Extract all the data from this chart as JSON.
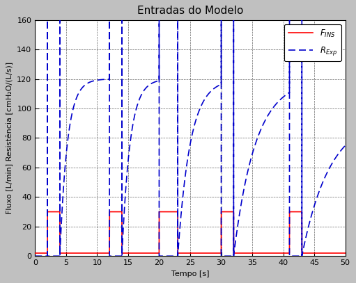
{
  "title": "Entradas do Modelo",
  "xlabel": "Tempo [s]",
  "ylabel": "Fluxo [L/min] Resistência [cmH₂O/(L/s)]",
  "xlim": [
    0,
    50
  ],
  "ylim": [
    0,
    160
  ],
  "xticks": [
    0,
    5,
    10,
    15,
    20,
    25,
    30,
    35,
    40,
    45,
    50
  ],
  "yticks": [
    0,
    20,
    40,
    60,
    80,
    100,
    120,
    140,
    160
  ],
  "bg_color": "#c0c0c0",
  "plot_bg_color": "#ffffff",
  "grid_color": "#000000",
  "flow_color": "#ff0000",
  "resist_color": "#0000cc",
  "flow_label": "$F_{INS}$",
  "resist_label": "$R_{Exp}$",
  "flow_lw": 1.2,
  "resist_lw": 1.2,
  "title_fontsize": 11,
  "label_fontsize": 8,
  "tick_fontsize": 8,
  "cycles": [
    {
      "insp_start": 2,
      "insp_end": 4,
      "exp_end": 12,
      "tau": 1.2,
      "r_max": 120
    },
    {
      "insp_start": 12,
      "insp_end": 14,
      "exp_end": 20,
      "tau": 1.3,
      "r_max": 120
    },
    {
      "insp_start": 20,
      "insp_end": 23,
      "exp_end": 30,
      "tau": 2.0,
      "r_max": 120
    },
    {
      "insp_start": 30,
      "insp_end": 32,
      "exp_end": 41,
      "tau": 3.5,
      "r_max": 120
    },
    {
      "insp_start": 41,
      "insp_end": 43,
      "exp_end": 50,
      "tau": 4.5,
      "r_max": 95
    }
  ],
  "flow_low": 2,
  "flow_high": 30
}
